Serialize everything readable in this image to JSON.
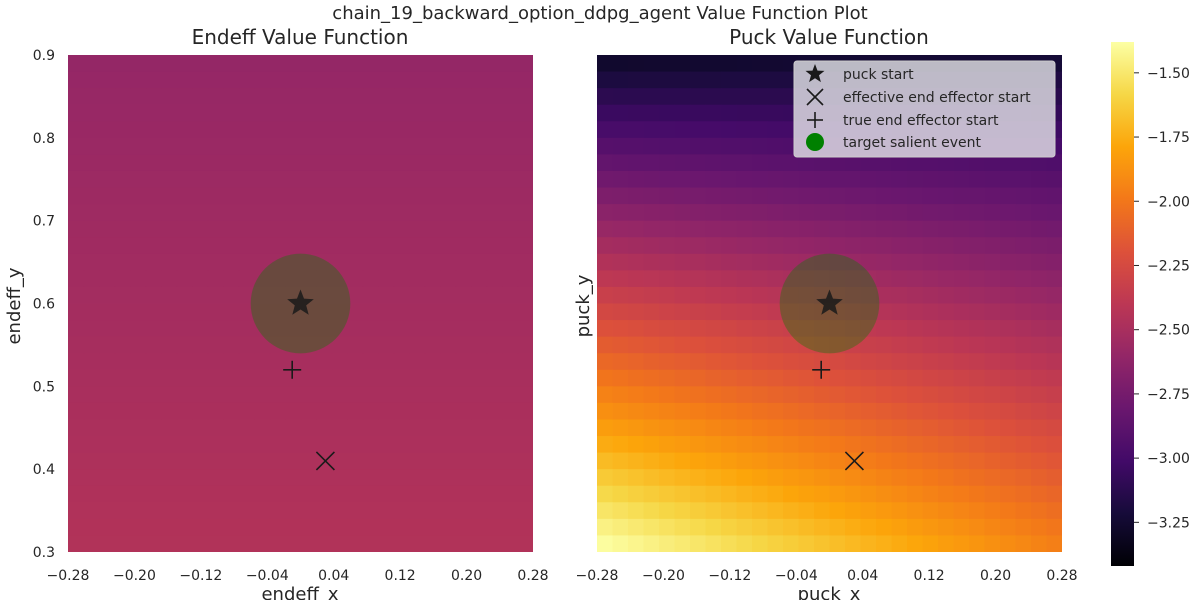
{
  "suptitle": "chain_19_backward_option_ddpg_agent Value Function Plot",
  "chart_data": [
    {
      "type": "heatmap",
      "title": "Endeff Value Function",
      "xlabel": "endeff_x",
      "ylabel": "endeff_y",
      "xlim": [
        -0.28,
        0.28
      ],
      "ylim": [
        0.3,
        0.9
      ],
      "x_ticks": [
        "−0.28",
        "−0.20",
        "−0.12",
        "−0.04",
        "0.04",
        "0.12",
        "0.20",
        "0.28"
      ],
      "y_ticks": [
        "0.3",
        "0.4",
        "0.5",
        "0.6",
        "0.7",
        "0.8",
        "0.9"
      ],
      "grid": false,
      "value_field": {
        "bottom_left": -2.45,
        "top_left": -2.6,
        "bottom_right": -2.45,
        "top_right": -2.6
      },
      "markers": {
        "puck_start": [
          0.0,
          0.6
        ],
        "effective_end_effector_start": [
          0.03,
          0.41
        ],
        "true_end_effector_start": [
          -0.01,
          0.52
        ],
        "target_salient_event": {
          "center": [
            0.0,
            0.6
          ],
          "radius": 0.06
        }
      }
    },
    {
      "type": "heatmap",
      "title": "Puck Value Function",
      "xlabel": "puck_x",
      "ylabel": "puck_y",
      "xlim": [
        -0.28,
        0.28
      ],
      "ylim": [
        0.3,
        0.9
      ],
      "x_ticks": [
        "−0.28",
        "−0.20",
        "−0.12",
        "−0.04",
        "0.04",
        "0.12",
        "0.20",
        "0.28"
      ],
      "grid": false,
      "value_field": {
        "bottom_left": -1.35,
        "top_left": -3.3,
        "bottom_right": -1.95,
        "top_right": -3.25
      },
      "markers": {
        "puck_start": [
          0.0,
          0.6
        ],
        "effective_end_effector_start": [
          0.03,
          0.41
        ],
        "true_end_effector_start": [
          -0.01,
          0.52
        ],
        "target_salient_event": {
          "center": [
            0.0,
            0.6
          ],
          "radius": 0.06
        }
      },
      "legend": {
        "position": "upper right",
        "entries": [
          "puck start",
          "effective end effector start",
          "true end effector start",
          "target salient event"
        ]
      }
    }
  ],
  "colorbar": {
    "colormap": "inferno",
    "range": [
      -3.42,
      -1.38
    ],
    "ticks": [
      -1.5,
      -1.75,
      -2.0,
      -2.25,
      -2.5,
      -2.75,
      -3.0,
      -3.25
    ],
    "tick_labels": [
      "−1.50",
      "−1.75",
      "−2.00",
      "−2.25",
      "−2.50",
      "−2.75",
      "−3.00",
      "−3.25"
    ]
  },
  "colors": {
    "target_salient_event": "#008000",
    "marker": "#1a1a1a"
  }
}
